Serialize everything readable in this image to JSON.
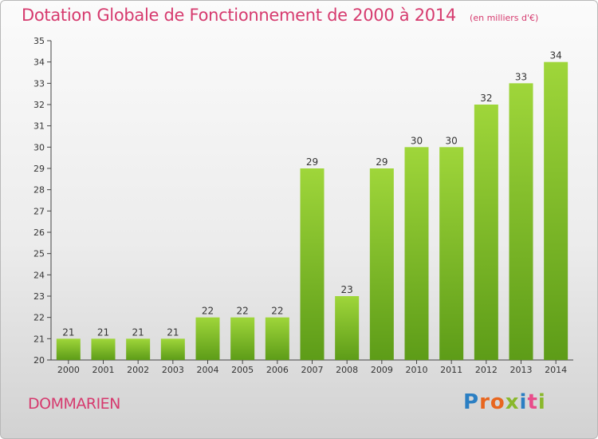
{
  "header": {
    "title": "Dotation Globale de Fonctionnement de 2000 à 2014",
    "subtitle": "(en milliers d'€)"
  },
  "footer": {
    "commune": "DOMMARIEN",
    "logo_text": "Proxiti",
    "logo_colors": [
      "#2b7fc3",
      "#e8661f",
      "#e8661f",
      "#8ab82c",
      "#2b7fc3",
      "#e84c8a",
      "#8ab82c"
    ]
  },
  "chart_data": {
    "type": "bar",
    "title": "Dotation Globale de Fonctionnement de 2000 à 2014",
    "subtitle": "(en milliers d'€)",
    "categories": [
      "2000",
      "2001",
      "2002",
      "2003",
      "2004",
      "2005",
      "2006",
      "2007",
      "2008",
      "2009",
      "2010",
      "2011",
      "2012",
      "2013",
      "2014"
    ],
    "values": [
      21,
      21,
      21,
      21,
      22,
      22,
      22,
      29,
      23,
      29,
      30,
      30,
      32,
      33,
      34
    ],
    "ylim": [
      20,
      35
    ],
    "yticks": [
      20,
      21,
      22,
      23,
      24,
      25,
      26,
      27,
      28,
      29,
      30,
      31,
      32,
      33,
      34,
      35
    ],
    "grid": false,
    "bar_color_top": "#9fd63a",
    "bar_color_bottom": "#5d9c18",
    "label_color": "#333333"
  }
}
